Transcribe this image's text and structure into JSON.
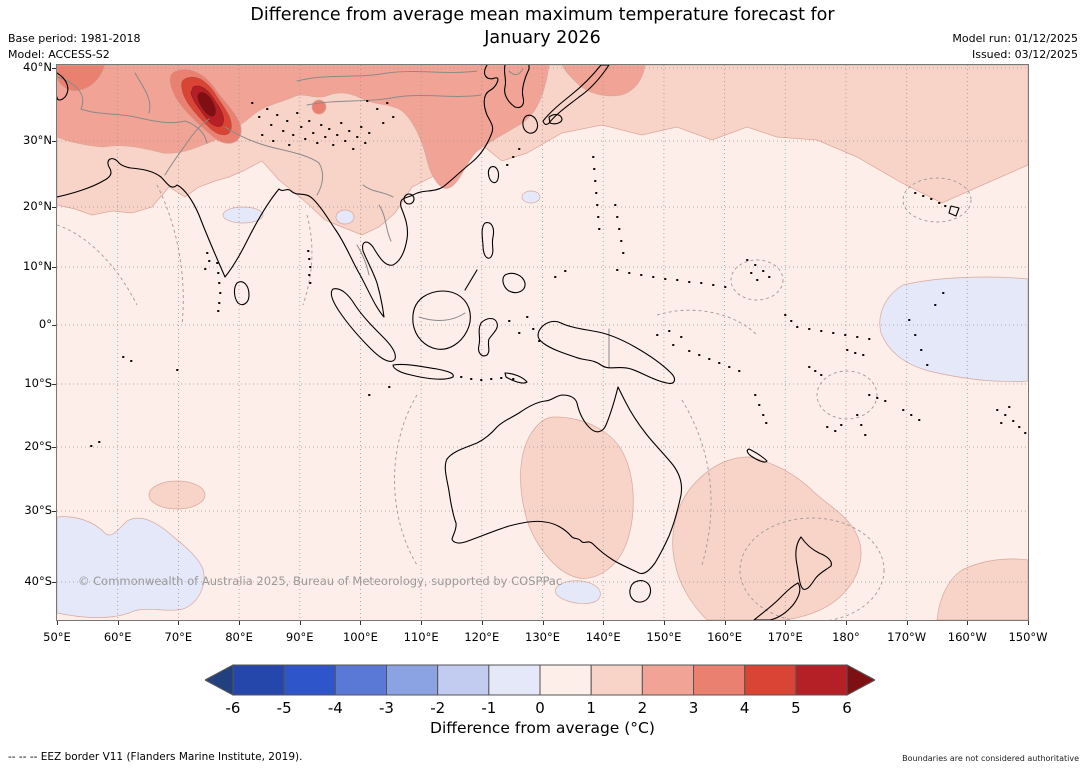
{
  "header": {
    "title_line1": "Difference from average mean maximum temperature forecast for",
    "title_line2": "January 2026",
    "base_period": "Base period: 1981-2018",
    "model": "Model: ACCESS-S2",
    "model_run": "Model run: 01/12/2025",
    "issued": "Issued: 03/12/2025"
  },
  "map": {
    "copyright": "© Commonwealth of Australia 2025, Bureau of Meteorology, supported by COSPPac",
    "lat_labels": [
      "40°N",
      "30°N",
      "20°N",
      "10°N",
      "0°",
      "10°S",
      "20°S",
      "30°S",
      "40°S"
    ],
    "lon_labels": [
      "50°E",
      "60°E",
      "70°E",
      "80°E",
      "90°E",
      "100°E",
      "110°E",
      "120°E",
      "130°E",
      "140°E",
      "150°E",
      "160°E",
      "170°E",
      "180°",
      "170°W",
      "160°W",
      "150°W"
    ]
  },
  "colorbar": {
    "ticks": [
      "-6",
      "-5",
      "-4",
      "-3",
      "-2",
      "-1",
      "0",
      "1",
      "2",
      "3",
      "4",
      "5",
      "6"
    ],
    "label": "Difference from average (°C)",
    "colors": [
      "#20407f",
      "#2547ab",
      "#2f55cb",
      "#5a78d5",
      "#8ca3e3",
      "#c2ccf0",
      "#e4e8f9",
      "#fdeee9",
      "#f8d3c8",
      "#f1a495",
      "#ea8070",
      "#da4435",
      "#b42026",
      "#7e1014"
    ]
  },
  "palette": {
    "anom_m1_0": "#e4e8f9",
    "anom_0_1": "#fdeee9",
    "anom_1_2": "#f8d3c8",
    "anom_2_3": "#f1a495",
    "anom_3_4": "#ea8070",
    "anom_4_5": "#da4435",
    "anom_5_6": "#b42026",
    "anom_gt6": "#7e1014"
  },
  "footer": {
    "eez_dashes": "--  --  --",
    "eez_label": "EEZ border V11 (Flanders Marine Institute, 2019).",
    "disclaimer": "Boundaries are not considered authoritative"
  }
}
